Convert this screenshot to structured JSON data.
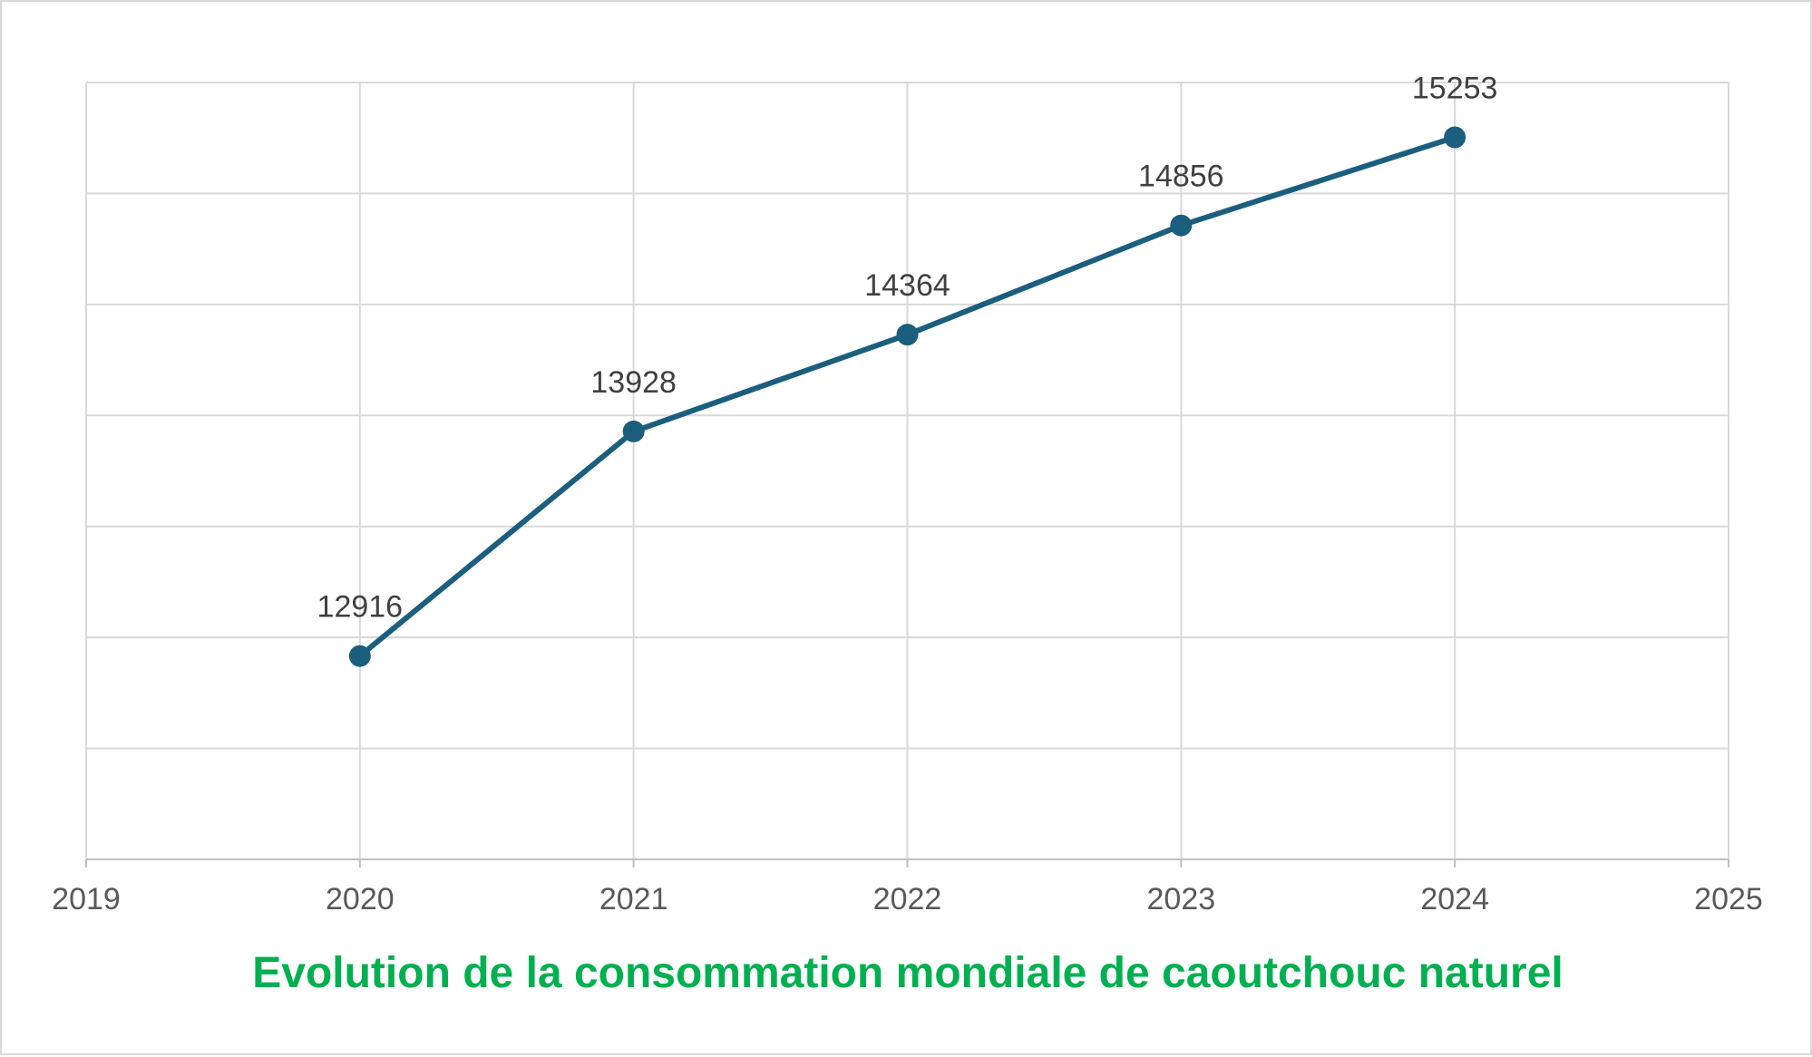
{
  "chart_data": {
    "type": "scatter",
    "title": "Evolution de la consommation mondiale de caoutchouc naturel",
    "xlabel": "",
    "ylabel": "",
    "xlim": [
      2019,
      2025
    ],
    "x_ticks": [
      "2019",
      "2020",
      "2021",
      "2022",
      "2023",
      "2024",
      "2025"
    ],
    "ylim": [
      12000,
      15500
    ],
    "y_gridlines": [
      12000,
      12500,
      13000,
      13500,
      14000,
      14500,
      15000,
      15500
    ],
    "grid": true,
    "y_tick_labels_shown": false,
    "legend": "none",
    "series": [
      {
        "name": "Consommation mondiale de caoutchouc naturel",
        "x": [
          2020,
          2021,
          2022,
          2023,
          2024
        ],
        "values": [
          12916,
          13928,
          14364,
          14856,
          15253
        ],
        "data_labels": [
          "12916",
          "13928",
          "14364",
          "14856",
          "15253"
        ]
      }
    ],
    "colors": {
      "line": "#1b5e7e",
      "marker": "#1b5e7e",
      "title": "#00b050",
      "grid": "#d9d9d9",
      "axis": "#bfbfbf",
      "tick_text": "#595959",
      "label_text": "#404040"
    }
  }
}
